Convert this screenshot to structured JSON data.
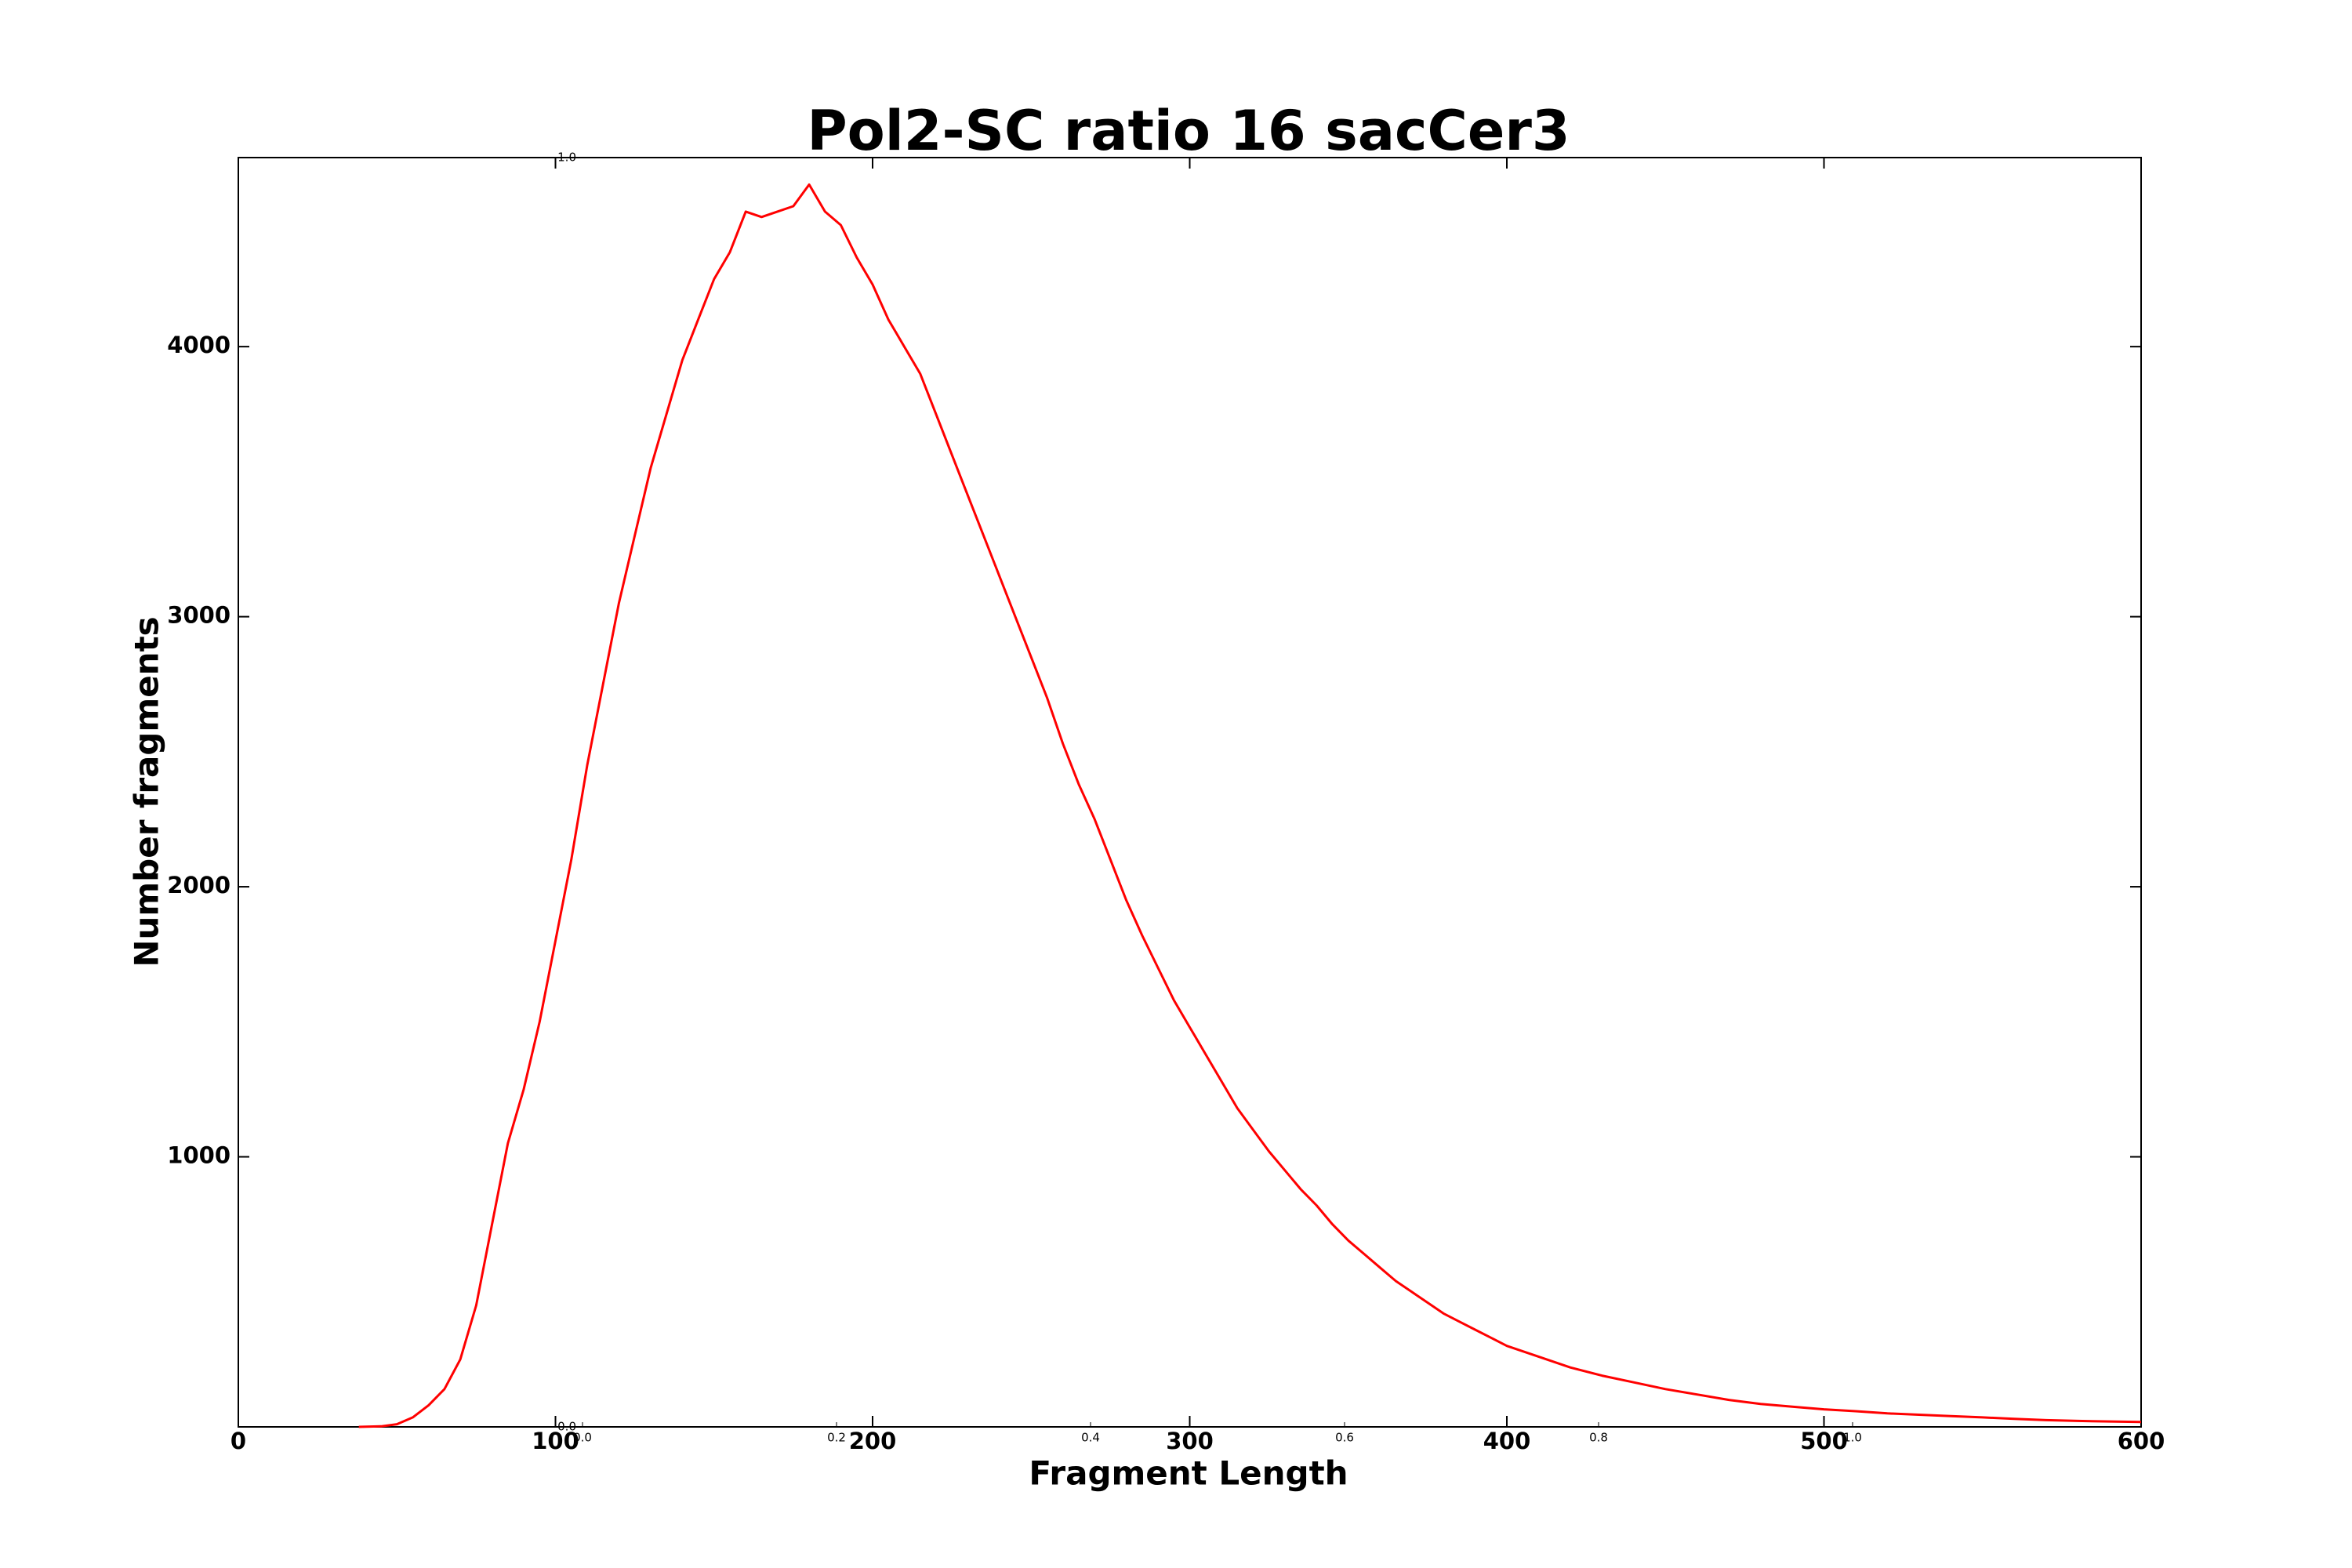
{
  "chart_data": {
    "type": "line",
    "title": "Pol2-SC ratio 16 sacCer3",
    "xlabel": "Fragment Length",
    "ylabel": "Number fragments",
    "color": "#ff0000",
    "x": [
      38,
      45,
      50,
      55,
      60,
      65,
      70,
      75,
      80,
      85,
      90,
      95,
      100,
      105,
      110,
      115,
      120,
      125,
      130,
      135,
      140,
      145,
      150,
      155,
      160,
      165,
      170,
      175,
      180,
      185,
      190,
      195,
      200,
      205,
      210,
      215,
      220,
      225,
      230,
      235,
      240,
      245,
      250,
      255,
      260,
      265,
      270,
      275,
      280,
      285,
      290,
      295,
      300,
      305,
      310,
      315,
      320,
      325,
      330,
      335,
      340,
      345,
      350,
      355,
      360,
      365,
      370,
      375,
      380,
      385,
      390,
      395,
      400,
      410,
      420,
      430,
      440,
      450,
      460,
      470,
      480,
      490,
      500,
      510,
      520,
      530,
      540,
      550,
      560,
      570,
      580,
      590,
      600
    ],
    "values": [
      0,
      2,
      10,
      35,
      80,
      140,
      250,
      450,
      750,
      1050,
      1250,
      1500,
      1800,
      2100,
      2450,
      2750,
      3050,
      3300,
      3550,
      3750,
      3950,
      4100,
      4250,
      4350,
      4500,
      4480,
      4500,
      4520,
      4600,
      4500,
      4450,
      4330,
      4230,
      4100,
      4000,
      3900,
      3750,
      3600,
      3450,
      3300,
      3150,
      3000,
      2850,
      2700,
      2530,
      2380,
      2250,
      2100,
      1950,
      1820,
      1700,
      1580,
      1480,
      1380,
      1280,
      1180,
      1100,
      1020,
      950,
      880,
      820,
      750,
      690,
      640,
      590,
      540,
      500,
      460,
      420,
      390,
      360,
      330,
      300,
      260,
      220,
      190,
      165,
      140,
      120,
      100,
      85,
      75,
      65,
      58,
      50,
      45,
      40,
      35,
      30,
      25,
      22,
      20,
      18
    ],
    "xlim": [
      0,
      600
    ],
    "xticks": [
      0,
      100,
      200,
      300,
      400,
      500,
      600
    ],
    "ylim": [
      0,
      4700
    ],
    "yticks": [
      1000,
      2000,
      3000,
      4000
    ],
    "inset_axis": {
      "xlim": [
        0,
        1
      ],
      "xticks": [
        {
          "value": 0,
          "label": "0.0"
        },
        {
          "value": 0.2,
          "label": "0.2"
        },
        {
          "value": 0.4,
          "label": "0.4"
        },
        {
          "value": 0.6,
          "label": "0.6"
        },
        {
          "value": 0.8,
          "label": "0.8"
        },
        {
          "value": 1,
          "label": "1.0"
        }
      ],
      "ylim": [
        0,
        1
      ],
      "yticks": [
        {
          "value": 0,
          "label": "0.0"
        },
        {
          "value": 1,
          "label": "1.0"
        }
      ]
    }
  }
}
